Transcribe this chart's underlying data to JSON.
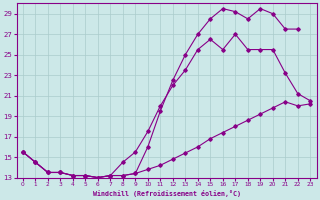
{
  "xlabel": "Windchill (Refroidissement éolien,°C)",
  "bg_color": "#cce8e8",
  "line_color": "#880088",
  "grid_color": "#aacccc",
  "xlim_min": -0.5,
  "xlim_max": 23.5,
  "ylim_min": 13,
  "ylim_max": 30,
  "xticks": [
    0,
    1,
    2,
    3,
    4,
    5,
    6,
    7,
    8,
    9,
    10,
    11,
    12,
    13,
    14,
    15,
    16,
    17,
    18,
    19,
    20,
    21,
    22,
    23
  ],
  "yticks": [
    13,
    15,
    17,
    19,
    21,
    23,
    25,
    27,
    29
  ],
  "series_bottom_x": [
    0,
    1,
    2,
    3,
    4,
    5,
    6,
    7,
    8,
    9,
    10,
    11,
    12,
    13,
    14,
    15,
    16,
    17,
    18,
    19,
    20,
    21,
    22,
    23
  ],
  "series_bottom_y": [
    15.5,
    14.5,
    13.5,
    13.5,
    13.2,
    13.2,
    13.0,
    13.2,
    13.2,
    13.4,
    13.8,
    14.2,
    14.8,
    15.4,
    16.0,
    16.8,
    17.4,
    18.0,
    18.6,
    19.2,
    19.8,
    20.4,
    20.0,
    20.2
  ],
  "series_mid_x": [
    0,
    1,
    2,
    3,
    4,
    5,
    6,
    7,
    8,
    9,
    10,
    11,
    12,
    13,
    14,
    15,
    16,
    17,
    18,
    19,
    20,
    21,
    22,
    23
  ],
  "series_mid_y": [
    15.5,
    14.5,
    13.5,
    13.5,
    13.2,
    13.2,
    13.0,
    13.2,
    14.5,
    15.5,
    17.5,
    20.0,
    22.0,
    23.5,
    25.5,
    26.5,
    25.5,
    27.0,
    25.5,
    25.5,
    25.5,
    23.2,
    21.2,
    20.5
  ],
  "series_top_x": [
    0,
    1,
    2,
    3,
    4,
    5,
    6,
    7,
    8,
    9,
    10,
    11,
    12,
    13,
    14,
    15,
    16,
    17,
    18,
    19,
    20,
    21,
    22
  ],
  "series_top_y": [
    15.5,
    14.5,
    13.5,
    13.5,
    13.2,
    13.2,
    13.0,
    13.2,
    13.2,
    13.4,
    16.0,
    19.5,
    22.5,
    25.0,
    27.0,
    28.5,
    29.5,
    29.2,
    28.5,
    29.5,
    29.0,
    27.5,
    27.5
  ]
}
